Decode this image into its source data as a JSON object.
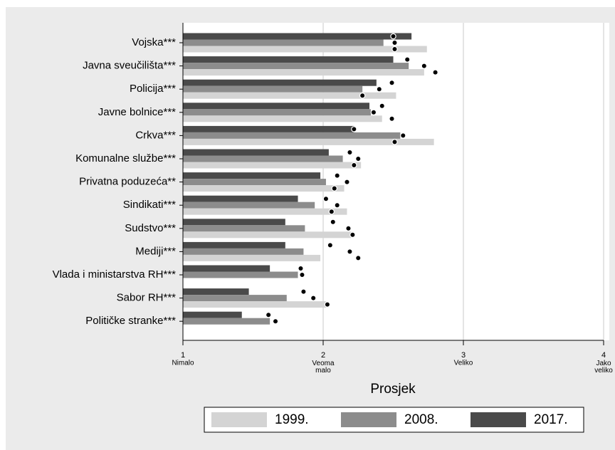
{
  "chart_data": {
    "type": "bar",
    "orientation": "horizontal",
    "x_axis_label": "Prosjek",
    "categories": [
      "Vojska***",
      "Javna sveučilišta***",
      "Policija***",
      "Javne bolnice***",
      "Crkva***",
      "Komunalne službe***",
      "Privatna poduzeća**",
      "Sindikati***",
      "Sudstvo***",
      "Mediji***",
      "Vlada i ministarstva RH***",
      "Sabor RH***",
      "Političke stranke***"
    ],
    "series": [
      {
        "name": "2017.",
        "color": "#4a4a4a",
        "values": [
          2.63,
          2.5,
          2.38,
          2.33,
          2.22,
          2.04,
          1.98,
          1.82,
          1.73,
          1.73,
          1.62,
          1.47,
          1.42
        ],
        "markers": [
          2.5,
          2.6,
          2.49,
          2.42,
          2.22,
          2.19,
          2.1,
          2.02,
          2.07,
          2.05,
          1.84,
          1.86,
          1.61
        ]
      },
      {
        "name": "2008.",
        "color": "#8c8c8c",
        "values": [
          2.43,
          2.61,
          2.28,
          2.34,
          2.55,
          2.14,
          2.02,
          1.94,
          1.87,
          1.86,
          1.82,
          1.74,
          1.62
        ],
        "markers": [
          2.51,
          2.72,
          2.4,
          2.36,
          2.57,
          2.25,
          2.17,
          2.1,
          2.18,
          2.19,
          1.85,
          1.93,
          1.66
        ]
      },
      {
        "name": "1999.",
        "color": "#d4d4d4",
        "values": [
          2.74,
          2.72,
          2.52,
          2.42,
          2.79,
          2.27,
          2.15,
          2.17,
          2.2,
          1.98,
          null,
          2.02,
          null
        ],
        "markers": [
          2.51,
          2.8,
          2.28,
          2.49,
          2.51,
          2.22,
          2.08,
          2.06,
          2.21,
          2.25,
          null,
          2.03,
          null
        ]
      }
    ],
    "xlim": [
      1,
      4
    ],
    "xticks": [
      1,
      2,
      3,
      4
    ],
    "xtick_sublabels": [
      "Nimalo",
      "Veoma malo",
      "Veliko",
      "Jako veliko"
    ],
    "grid": true,
    "legend": "bottom"
  }
}
